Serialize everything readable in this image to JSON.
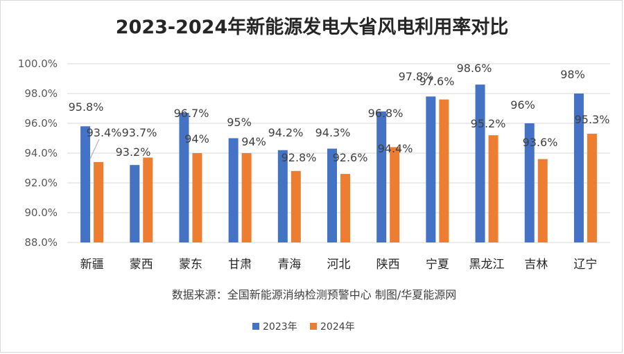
{
  "chart_data": {
    "type": "bar",
    "title": "2023-2024年新能源发电大省风电利用率对比",
    "source_note": "数据来源：全国新能源消纳检测预警中心 制图/华夏能源网",
    "categories": [
      "新疆",
      "蒙西",
      "蒙东",
      "甘肃",
      "青海",
      "河北",
      "陕西",
      "宁夏",
      "黑龙江",
      "吉林",
      "辽宁"
    ],
    "series": [
      {
        "name": "2023年",
        "color": "#4472c4",
        "values": [
          95.8,
          93.2,
          96.7,
          95.0,
          94.2,
          94.3,
          96.8,
          97.8,
          98.6,
          96.0,
          98.0
        ],
        "labels": [
          "95.8%",
          "93.2%",
          "96.7%",
          "95%",
          "94.2%",
          "94.3%",
          "96.8%",
          "97.8%",
          "98.6%",
          "96%",
          "98%"
        ]
      },
      {
        "name": "2024年",
        "color": "#ed7d31",
        "values": [
          93.4,
          93.7,
          94.0,
          94.0,
          92.8,
          92.6,
          94.4,
          97.6,
          95.2,
          93.6,
          95.3
        ],
        "labels": [
          "93.4%",
          "93.7%",
          "94%",
          "94%",
          "92.8%",
          "92.6%",
          "94.4%",
          "97.6%",
          "95.2%",
          "93.6%",
          "95.3%"
        ]
      }
    ],
    "ylim": [
      88,
      100
    ],
    "yticks": [
      "88.0%",
      "90.0%",
      "92.0%",
      "94.0%",
      "96.0%",
      "98.0%",
      "100.0%"
    ],
    "grid": true,
    "legend_position": "bottom"
  }
}
